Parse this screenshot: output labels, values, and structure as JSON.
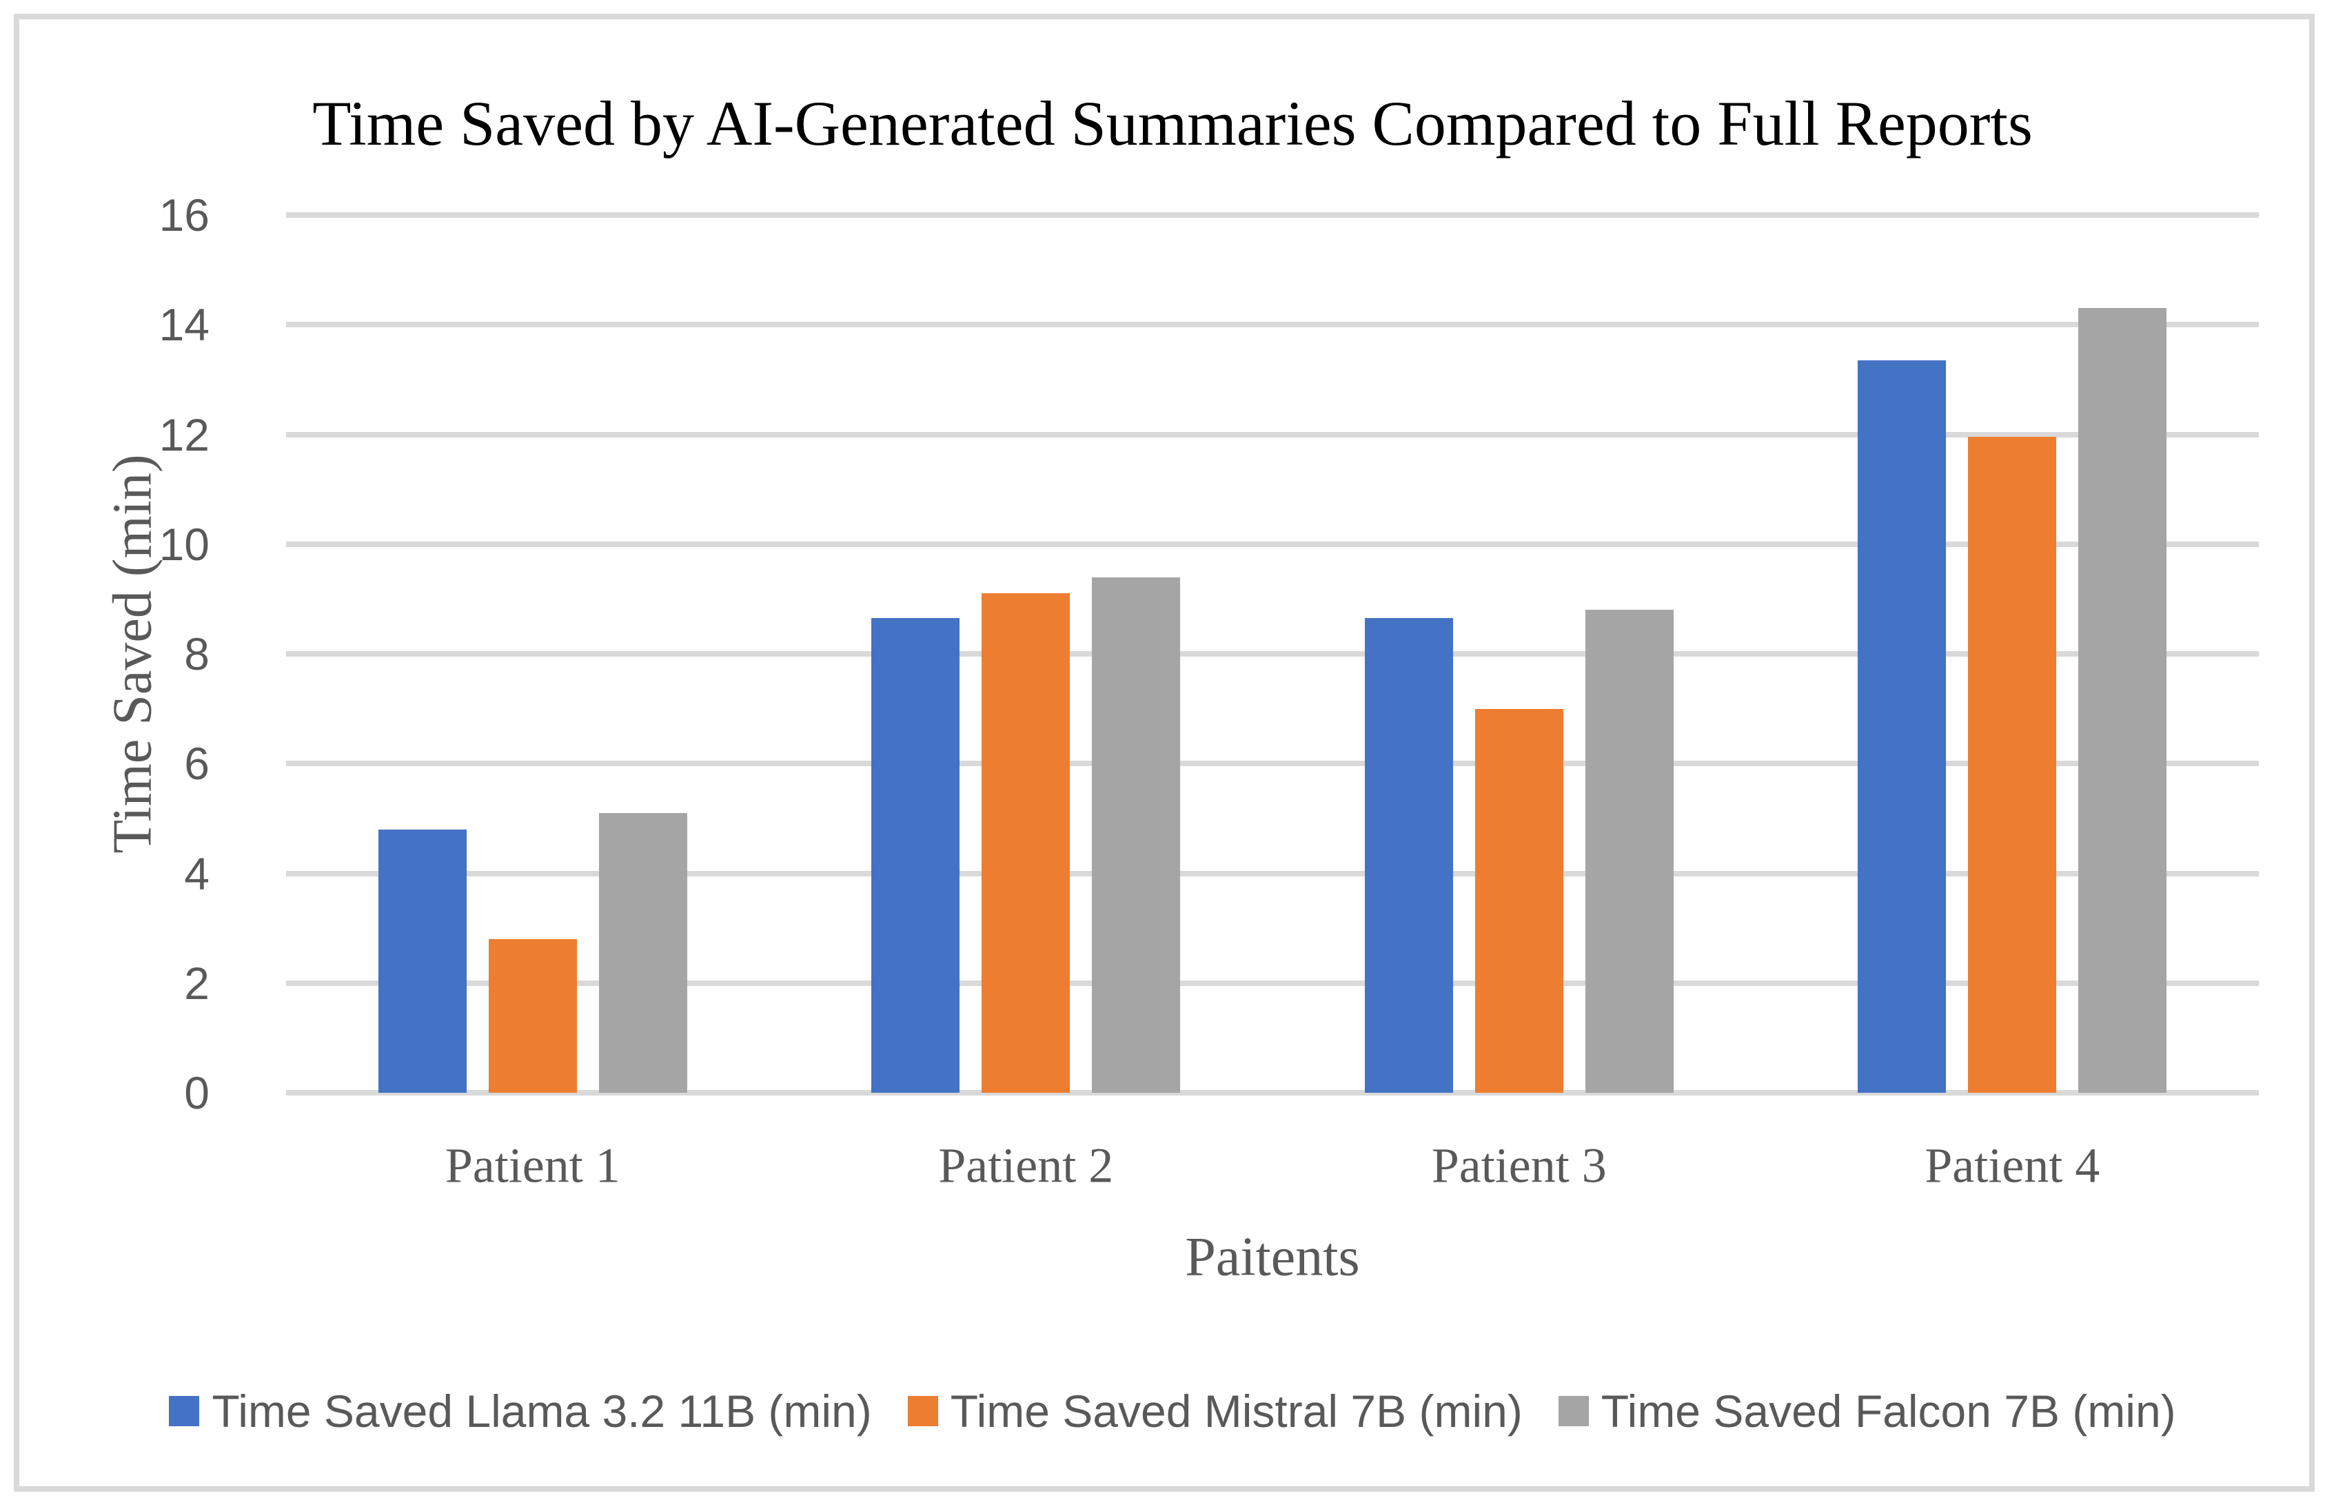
{
  "figure": {
    "background_color": "#FFFFFF",
    "border_color": "#D9D9D9",
    "gridline_color": "#D9D9D9",
    "text_color": "#595959",
    "title_color": "#000000"
  },
  "chart_data": {
    "type": "bar",
    "title": "Time Saved by AI-Generated Summaries Compared to Full Reports",
    "xlabel": "Paitents",
    "ylabel": "Time Saved (min)",
    "categories": [
      "Patient 1",
      "Patient 2",
      "Patient 3",
      "Patient 4"
    ],
    "series": [
      {
        "name": "Time Saved Llama 3.2 11B (min)",
        "color": "#4472C4",
        "values": [
          4.8,
          8.65,
          8.65,
          13.35
        ]
      },
      {
        "name": "Time Saved Mistral 7B (min)",
        "color": "#ED7D31",
        "values": [
          2.8,
          9.1,
          7.0,
          11.95
        ]
      },
      {
        "name": "Time Saved Falcon 7B (min)",
        "color": "#A5A5A5",
        "values": [
          5.1,
          9.4,
          8.8,
          14.3
        ]
      }
    ],
    "ylim": [
      0,
      16
    ],
    "yticks": [
      0,
      2,
      4,
      6,
      8,
      10,
      12,
      14,
      16
    ],
    "grid": true,
    "legend_position": "bottom"
  }
}
